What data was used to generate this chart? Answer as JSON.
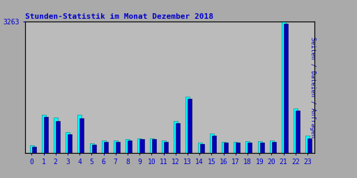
{
  "title": "Stunden-Statistik im Monat Dezember 2018",
  "ylabel": "Seiten / Dateien / Anfragen",
  "ytick_label": "3263",
  "hours": [
    0,
    1,
    2,
    3,
    4,
    5,
    6,
    7,
    8,
    9,
    10,
    11,
    12,
    13,
    14,
    15,
    16,
    17,
    18,
    19,
    20,
    21,
    22,
    23
  ],
  "seiten": [
    200,
    950,
    880,
    520,
    950,
    250,
    310,
    320,
    340,
    370,
    370,
    310,
    800,
    1400,
    260,
    490,
    280,
    280,
    290,
    290,
    320,
    3263,
    1100,
    430
  ],
  "anfragen": [
    160,
    900,
    800,
    470,
    870,
    210,
    275,
    285,
    305,
    340,
    340,
    275,
    750,
    1350,
    230,
    440,
    255,
    255,
    260,
    260,
    280,
    3200,
    1050,
    365
  ],
  "bar_color_cyan": "#00FFFF",
  "bar_color_dark": "#0000BB",
  "background_color": "#AAAAAA",
  "plot_bg_color": "#BBBBBB",
  "title_color": "#0000CC",
  "ylabel_color": "#0000CC",
  "tick_color": "#0000CC",
  "border_color": "#000000",
  "grid_color": "#999999",
  "ylim_max": 3263,
  "bar_width": 0.35,
  "figsize": [
    5.12,
    2.56
  ],
  "dpi": 100
}
